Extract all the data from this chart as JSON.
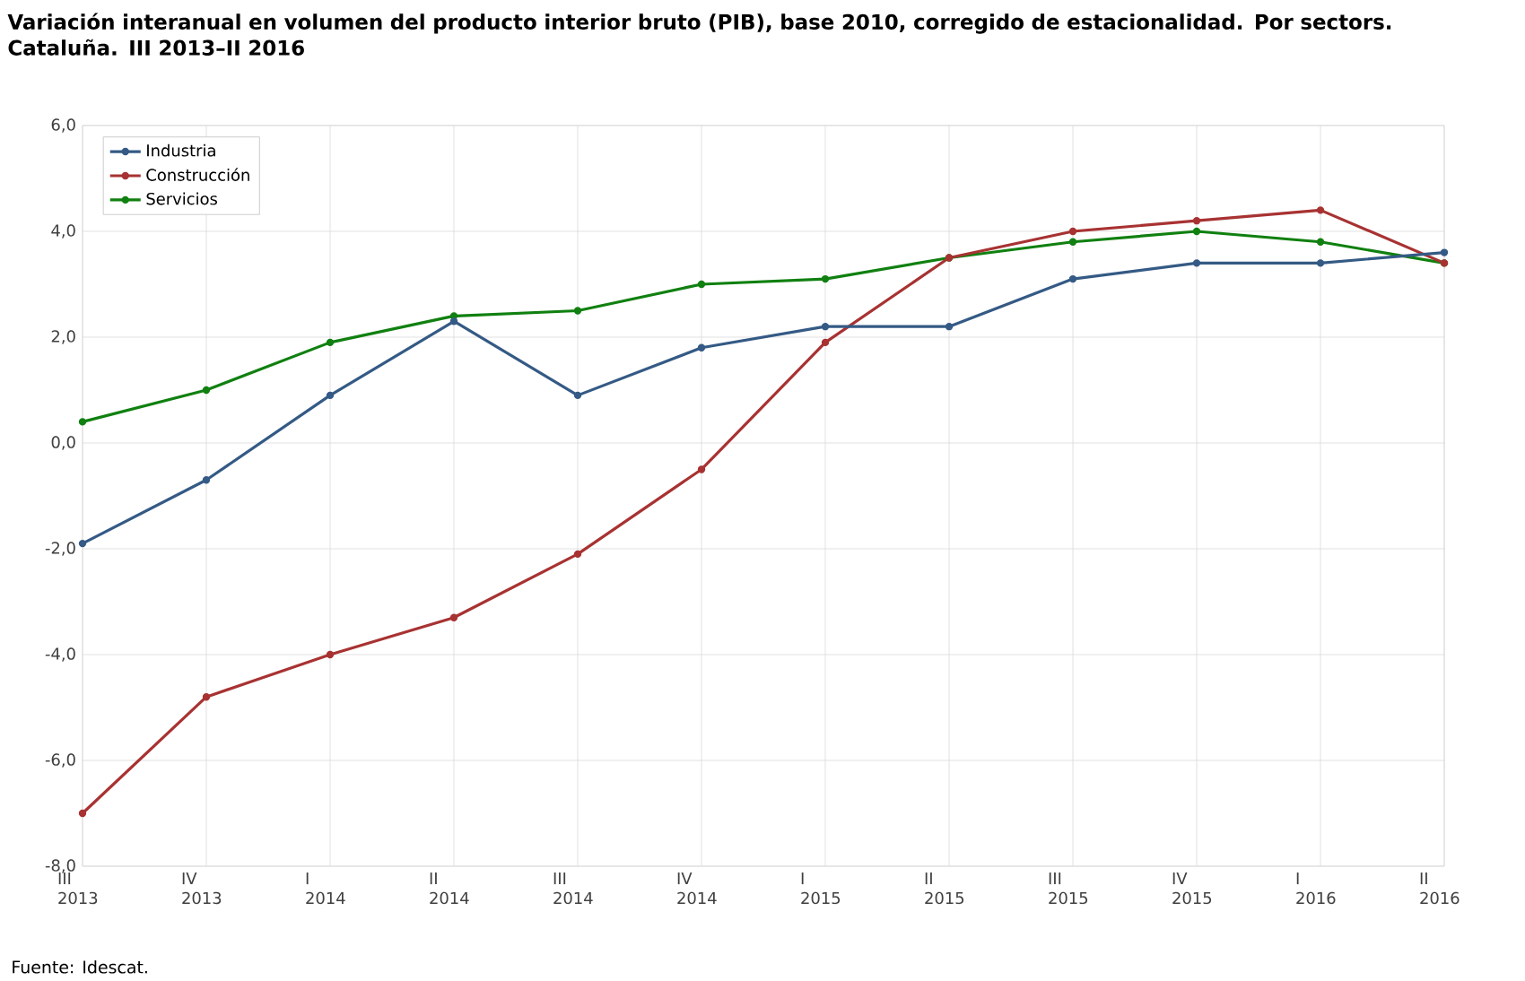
{
  "chart_data": {
    "type": "line",
    "title": "Variación interanual en volumen del producto interior bruto (PIB), base 2010, corregido de estacionalidad. Por sectors. Cataluña. III 2013–II 2016",
    "categories": [
      "III 2013",
      "IV 2013",
      "I 2014",
      "II 2014",
      "III 2014",
      "IV 2014",
      "I 2015",
      "II 2015",
      "III 2015",
      "IV 2015",
      "I 2016",
      "II 2016"
    ],
    "series": [
      {
        "name": "Industria",
        "color": "#345a85",
        "values": [
          -1.9,
          -0.7,
          0.9,
          2.3,
          0.9,
          1.8,
          2.2,
          2.2,
          3.1,
          3.4,
          3.4,
          3.6
        ]
      },
      {
        "name": "Construcción",
        "color": "#a83232",
        "values": [
          -7.0,
          -4.8,
          -4.0,
          -3.3,
          -2.1,
          -0.5,
          1.9,
          3.5,
          4.0,
          4.2,
          4.4,
          3.4
        ]
      },
      {
        "name": "Servicios",
        "color": "#108010",
        "values": [
          0.4,
          1.0,
          1.9,
          2.4,
          2.5,
          3.0,
          3.1,
          3.5,
          3.8,
          4.0,
          3.8,
          3.4
        ]
      }
    ],
    "ylim": [
      -8,
      6
    ],
    "yticks": [
      {
        "value": -8,
        "label": "-8,0"
      },
      {
        "value": -6,
        "label": "-6,0"
      },
      {
        "value": -4,
        "label": "-4,0"
      },
      {
        "value": -2,
        "label": "-2,0"
      },
      {
        "value": 0,
        "label": "0,0"
      },
      {
        "value": 2,
        "label": "2,0"
      },
      {
        "value": 4,
        "label": "4,0"
      },
      {
        "value": 6,
        "label": "6,0"
      }
    ],
    "grid": true,
    "legend": "top left",
    "marker": "circle",
    "line_style": "solid",
    "annotations": [
      "Fuente: Idescat."
    ]
  }
}
